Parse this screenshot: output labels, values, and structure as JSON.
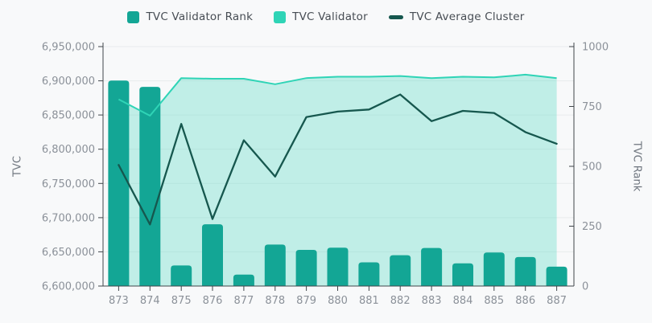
{
  "legend": {
    "items": [
      {
        "label": "TVC Validator Rank",
        "color": "#13a695",
        "shape": "square"
      },
      {
        "label": "TVC Validator",
        "color": "#2fd4b6",
        "shape": "square"
      },
      {
        "label": "TVC Average Cluster",
        "color": "#16574e",
        "shape": "line"
      }
    ]
  },
  "axes": {
    "left": {
      "title": "TVC",
      "tick_labels": [
        "6,950,000",
        "6,900,000",
        "6,850,000",
        "6,800,000",
        "6,750,000",
        "6,700,000",
        "6,650,000",
        "6,600,000"
      ]
    },
    "right": {
      "title": "TVC Rank",
      "tick_labels": [
        "1000",
        "750",
        "500",
        "250",
        "0"
      ]
    },
    "x": {
      "tick_labels": [
        "873",
        "874",
        "875",
        "876",
        "877",
        "878",
        "879",
        "880",
        "881",
        "882",
        "883",
        "884",
        "885",
        "886",
        "887"
      ]
    }
  },
  "colors": {
    "background": "#f8f9fa",
    "grid": "#e9eced",
    "axis": "#3f454a",
    "tick_text": "#8b9199",
    "axis_title_text": "#6e757e",
    "legend_text": "#474d54",
    "area_fill": "rgba(47,212,182,0.28)"
  },
  "chart_data": {
    "type": "combo",
    "title": "",
    "xlabel": "",
    "ylabel_left": "TVC",
    "ylabel_right": "TVC Rank",
    "ylim_left": [
      6600000,
      6950000
    ],
    "ylim_right": [
      0,
      1000
    ],
    "grid": true,
    "legend_position": "top",
    "categories": [
      873,
      874,
      875,
      876,
      877,
      878,
      879,
      880,
      881,
      882,
      883,
      884,
      885,
      886,
      887
    ],
    "series": [
      {
        "name": "TVC Validator Rank",
        "type": "bar",
        "axis": "right",
        "color": "#13a695",
        "values": [
          858,
          832,
          86,
          258,
          48,
          173,
          151,
          160,
          99,
          129,
          159,
          95,
          140,
          121,
          81
        ]
      },
      {
        "name": "TVC Validator",
        "type": "area",
        "axis": "left",
        "color": "#2fd4b6",
        "values": [
          6873000,
          6849000,
          6904000,
          6903000,
          6903000,
          6895000,
          6904000,
          6906000,
          6906000,
          6907000,
          6904000,
          6906000,
          6905000,
          6909000,
          6904000
        ]
      },
      {
        "name": "TVC Average Cluster",
        "type": "line",
        "axis": "left",
        "color": "#16574e",
        "values": [
          6777000,
          6690000,
          6837000,
          6698000,
          6813000,
          6760000,
          6847000,
          6855000,
          6858000,
          6880000,
          6841000,
          6856000,
          6853000,
          6825000,
          6808000
        ]
      }
    ]
  }
}
